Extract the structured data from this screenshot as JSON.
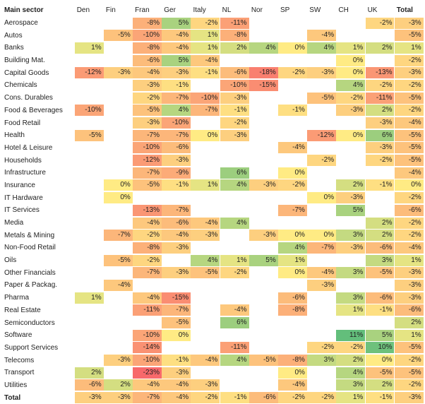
{
  "table": {
    "corner_label": "Main sector",
    "columns": [
      "Den",
      "Fin",
      "Fran",
      "Ger",
      "Italy",
      "NL",
      "Nor",
      "SP",
      "SW",
      "CH",
      "UK",
      "Total"
    ],
    "rows": [
      {
        "sector": "Aerospace",
        "values": [
          null,
          null,
          -8,
          5,
          -2,
          -11,
          null,
          null,
          null,
          null,
          -2,
          -3
        ]
      },
      {
        "sector": "Autos",
        "values": [
          null,
          -5,
          -10,
          -4,
          1,
          -8,
          null,
          null,
          -4,
          null,
          null,
          -5
        ]
      },
      {
        "sector": "Banks",
        "values": [
          1,
          null,
          -8,
          -4,
          1,
          2,
          4,
          0,
          4,
          1,
          2,
          1
        ]
      },
      {
        "sector": "Building Mat.",
        "values": [
          null,
          null,
          -6,
          5,
          -4,
          null,
          null,
          null,
          null,
          0,
          null,
          -2
        ]
      },
      {
        "sector": "Capital Goods",
        "values": [
          -12,
          -3,
          -4,
          -3,
          -1,
          -6,
          -18,
          -2,
          -3,
          0,
          -13,
          -3
        ]
      },
      {
        "sector": "Chemicals",
        "values": [
          null,
          null,
          -3,
          -1,
          null,
          -10,
          -15,
          null,
          null,
          4,
          -2,
          -2
        ]
      },
      {
        "sector": "Cons. Durables",
        "values": [
          null,
          null,
          -2,
          -7,
          -10,
          -3,
          null,
          null,
          -5,
          -2,
          -11,
          -5
        ]
      },
      {
        "sector": "Food & Beverages",
        "values": [
          -10,
          null,
          -5,
          4,
          -7,
          -1,
          null,
          -1,
          null,
          -3,
          2,
          -2
        ]
      },
      {
        "sector": "Food Retail",
        "values": [
          null,
          null,
          -3,
          -10,
          null,
          -2,
          null,
          null,
          null,
          null,
          -3,
          -4
        ]
      },
      {
        "sector": "Health",
        "values": [
          -5,
          null,
          -7,
          -7,
          0,
          -3,
          null,
          null,
          -12,
          0,
          6,
          -5
        ]
      },
      {
        "sector": "Hotel & Leisure",
        "values": [
          null,
          null,
          -10,
          -6,
          null,
          null,
          null,
          -4,
          null,
          null,
          -3,
          -5
        ]
      },
      {
        "sector": "Households",
        "values": [
          null,
          null,
          -12,
          -3,
          null,
          null,
          null,
          null,
          -2,
          null,
          -2,
          -5
        ]
      },
      {
        "sector": "Infrastructure",
        "values": [
          null,
          null,
          -7,
          -9,
          null,
          6,
          null,
          0,
          null,
          null,
          null,
          -4
        ]
      },
      {
        "sector": "Insurance",
        "values": [
          null,
          0,
          -5,
          -1,
          1,
          4,
          -3,
          -2,
          null,
          2,
          -1,
          0
        ]
      },
      {
        "sector": "IT Hardware",
        "values": [
          null,
          0,
          null,
          null,
          null,
          null,
          null,
          null,
          0,
          -3,
          null,
          -2
        ]
      },
      {
        "sector": "IT Services",
        "values": [
          null,
          null,
          -13,
          -7,
          null,
          null,
          null,
          -7,
          null,
          5,
          null,
          -6
        ]
      },
      {
        "sector": "Media",
        "values": [
          null,
          null,
          -4,
          -6,
          -4,
          4,
          null,
          null,
          null,
          null,
          2,
          -2
        ]
      },
      {
        "sector": "Metals & Mining",
        "values": [
          null,
          -7,
          -2,
          -4,
          -3,
          null,
          -3,
          0,
          0,
          3,
          2,
          -2
        ]
      },
      {
        "sector": "Non-Food Retail",
        "values": [
          null,
          null,
          -8,
          -3,
          null,
          null,
          null,
          4,
          -7,
          -3,
          -6,
          -4
        ]
      },
      {
        "sector": "Oils",
        "values": [
          null,
          -5,
          -2,
          null,
          4,
          1,
          5,
          1,
          null,
          null,
          3,
          1
        ]
      },
      {
        "sector": "Other Financials",
        "values": [
          null,
          null,
          -7,
          -3,
          -5,
          -2,
          null,
          0,
          -4,
          3,
          -5,
          -3
        ]
      },
      {
        "sector": "Paper & Packag.",
        "values": [
          null,
          -4,
          null,
          null,
          null,
          null,
          null,
          null,
          -3,
          null,
          null,
          -3
        ]
      },
      {
        "sector": "Pharma",
        "values": [
          1,
          null,
          -4,
          -15,
          null,
          null,
          null,
          -6,
          null,
          3,
          -6,
          -3
        ]
      },
      {
        "sector": "Real Estate",
        "values": [
          null,
          null,
          -11,
          -7,
          null,
          -4,
          null,
          -8,
          null,
          1,
          -1,
          -6
        ]
      },
      {
        "sector": "Semiconductors",
        "values": [
          null,
          null,
          null,
          -5,
          null,
          6,
          null,
          null,
          null,
          null,
          null,
          2
        ]
      },
      {
        "sector": "Software",
        "values": [
          null,
          null,
          -10,
          0,
          null,
          null,
          null,
          null,
          null,
          11,
          5,
          1
        ]
      },
      {
        "sector": "Support Services",
        "values": [
          null,
          null,
          -14,
          null,
          null,
          -11,
          null,
          null,
          -2,
          -2,
          10,
          -5
        ]
      },
      {
        "sector": "Telecoms",
        "values": [
          null,
          -3,
          -10,
          -1,
          -4,
          4,
          -5,
          -8,
          3,
          2,
          0,
          -2
        ]
      },
      {
        "sector": "Transport",
        "values": [
          2,
          null,
          -23,
          -3,
          null,
          null,
          null,
          0,
          null,
          4,
          -5,
          -5
        ]
      },
      {
        "sector": "Utilities",
        "values": [
          -6,
          2,
          -4,
          -4,
          -3,
          null,
          null,
          -4,
          null,
          3,
          2,
          -2
        ]
      },
      {
        "sector": "Total",
        "values": [
          -3,
          -3,
          -7,
          -4,
          -2,
          -1,
          -6,
          -2,
          -2,
          1,
          -1,
          -3
        ]
      }
    ],
    "colors": {
      "max_negative": "#f8696b",
      "mid": "#ffeb84",
      "max_positive": "#63be7b"
    }
  }
}
